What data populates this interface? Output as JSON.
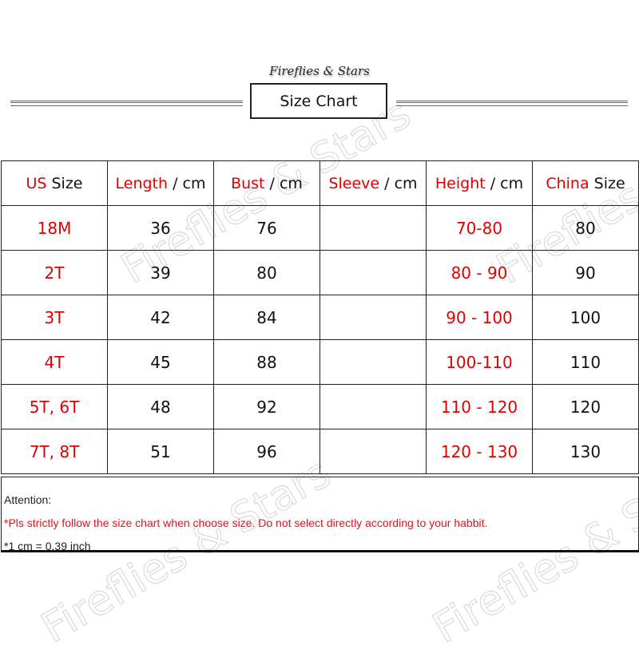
{
  "brand": "Fireflies & Stars",
  "title": "Size Chart",
  "headers": [
    {
      "red": "US",
      "black": " Size"
    },
    {
      "red": "Length",
      "black": " / cm"
    },
    {
      "red": "Bust",
      "black": " / cm"
    },
    {
      "red": "Sleeve",
      "black": " / cm"
    },
    {
      "red": "Height",
      "black": " / cm"
    },
    {
      "red": "China",
      "black": " Size"
    }
  ],
  "rows": [
    [
      "18M",
      "36",
      "76",
      "",
      "70-80",
      "80"
    ],
    [
      "2T",
      "39",
      "80",
      "",
      "80 - 90",
      "90"
    ],
    [
      "3T",
      "42",
      "84",
      "",
      "90 - 100",
      "100"
    ],
    [
      "4T",
      "45",
      "88",
      "",
      "100-110",
      "110"
    ],
    [
      "5T, 6T",
      "48",
      "92",
      "",
      "110 - 120",
      "120"
    ],
    [
      "7T, 8T",
      "51",
      "96",
      "",
      "120 - 130",
      "130"
    ]
  ],
  "notes": {
    "heading": "Attention:",
    "warning": "*Pls strictly follow the size chart when choose size. Do not select directly according to your habbit.",
    "conversion": "*1 cm = 0.39 inch"
  },
  "colors": {
    "accent": "#e00000"
  }
}
